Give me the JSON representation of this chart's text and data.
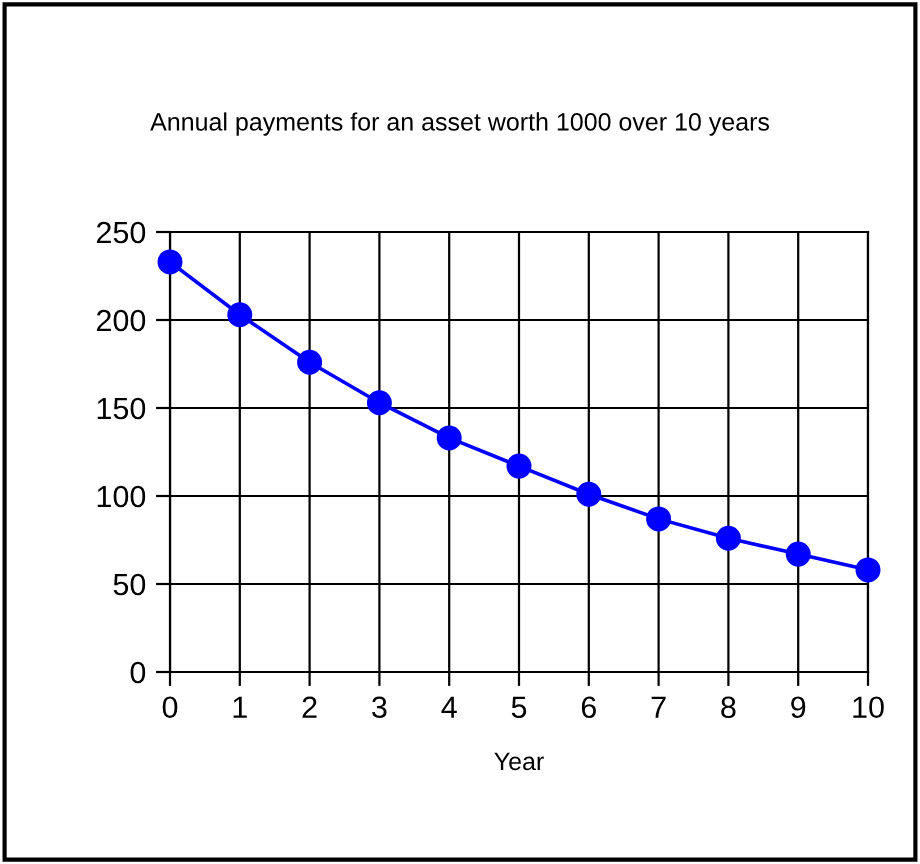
{
  "chart_data": {
    "type": "line",
    "title": "Annual payments for an asset worth 1000 over 10 years",
    "xlabel": "Year",
    "x": [
      0,
      1,
      2,
      3,
      4,
      5,
      6,
      7,
      8,
      9,
      10
    ],
    "series": [
      {
        "color": "#0000ff",
        "values": [
          233,
          203,
          176,
          153,
          133,
          117,
          101,
          87,
          76,
          67,
          58
        ]
      }
    ],
    "xlim": [
      0,
      10
    ],
    "xticks": [
      0,
      1,
      2,
      3,
      4,
      5,
      6,
      7,
      8,
      9,
      10
    ],
    "ylim": [
      0,
      250
    ],
    "yticks": [
      0,
      50,
      100,
      150,
      200,
      250
    ],
    "grid": true,
    "marker": "circle",
    "line_style": "solid",
    "legend": false
  }
}
